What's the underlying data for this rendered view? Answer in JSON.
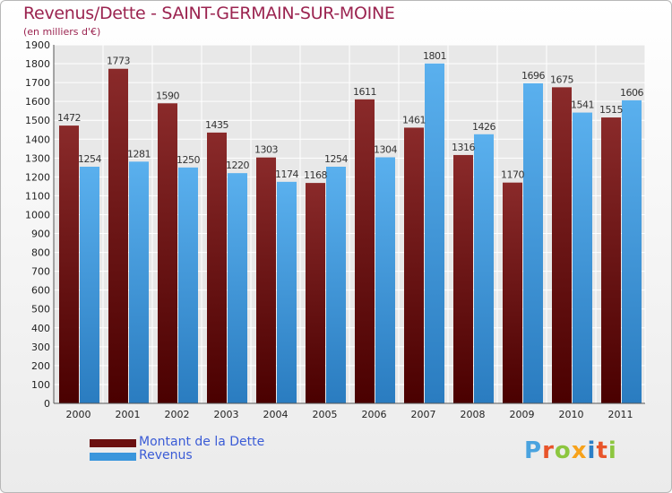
{
  "chart_data": {
    "type": "bar",
    "title": "Revenus/Dette - SAINT-GERMAIN-SUR-MOINE",
    "subtitle": "(en milliers d'€)",
    "categories": [
      "2000",
      "2001",
      "2002",
      "2003",
      "2004",
      "2005",
      "2006",
      "2007",
      "2008",
      "2009",
      "2010",
      "2011"
    ],
    "series": [
      {
        "name": "Montant de la Dette",
        "color": "#6b1010",
        "values": [
          1472,
          1773,
          1590,
          1435,
          1303,
          1168,
          1611,
          1461,
          1316,
          1170,
          1675,
          1515
        ]
      },
      {
        "name": "Revenus",
        "color": "#3a96dc",
        "values": [
          1254,
          1281,
          1250,
          1220,
          1174,
          1254,
          1304,
          1801,
          1426,
          1696,
          1541,
          1606
        ]
      }
    ],
    "ylim": [
      0,
      1900
    ],
    "yticks": [
      0,
      100,
      200,
      300,
      400,
      500,
      600,
      700,
      800,
      900,
      1000,
      1100,
      1200,
      1300,
      1400,
      1500,
      1600,
      1700,
      1800,
      1900
    ],
    "grid": true,
    "legend": "bottom-left"
  },
  "logo": {
    "text": "Proxiti",
    "colors": [
      "#4aa3df",
      "#e8542a",
      "#8cc63f",
      "#f7a21b",
      "#2b7fc7",
      "#e8542a",
      "#8cc63f"
    ]
  }
}
